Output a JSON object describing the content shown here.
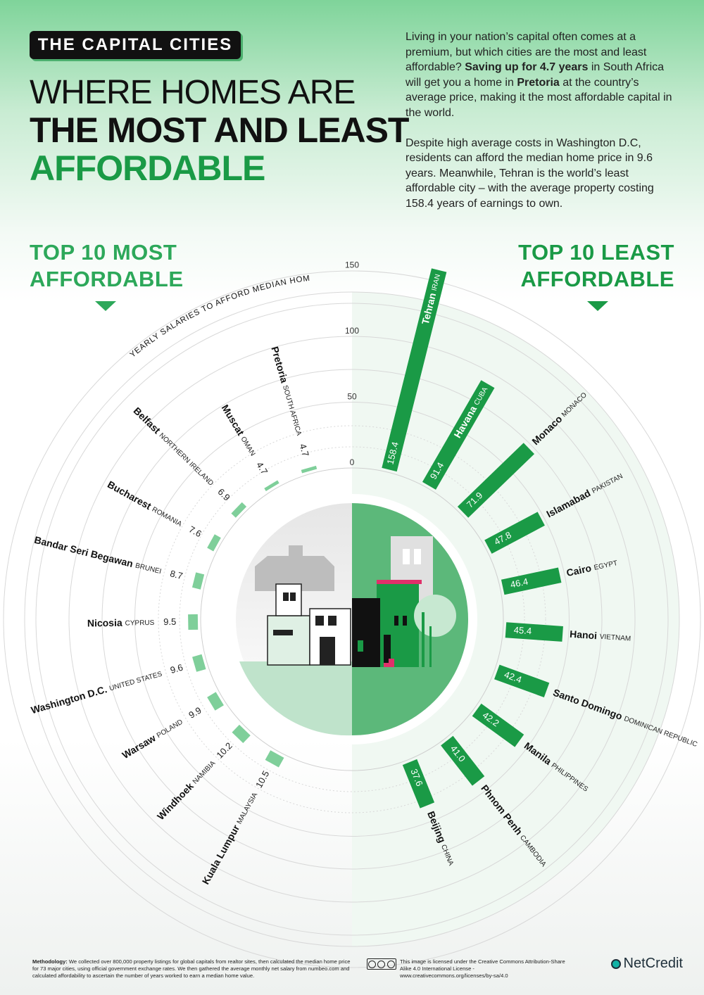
{
  "header": {
    "badge": "THE CAPITAL CITIES",
    "title_line1": "WHERE HOMES ARE",
    "title_line2": "THE MOST AND LEAST",
    "title_line3": "AFFORDABLE"
  },
  "intro": {
    "p1_a": "Living in your nation’s capital often comes at a premium, but which cities are the most and least affordable? ",
    "p1_b": "Saving up for 4.7 years",
    "p1_c": " in South Africa will get you a home in ",
    "p1_d": "Pretoria",
    "p1_e": " at the country’s average price, making it the most affordable capital in the world.",
    "p2": "Despite high average costs in Washington D.C, residents can afford the median home price in 9.6 years. Meanwhile, Tehran is the world’s least affordable city – with the average property costing 158.4 years of earnings to own."
  },
  "sections": {
    "left_line1": "TOP 10 MOST",
    "left_line2": "AFFORDABLE",
    "right_line1": "TOP 10 LEAST",
    "right_line2": "AFFORDABLE"
  },
  "colors": {
    "most_affordable": "#7fcf9a",
    "least_affordable": "#1a9a46",
    "ring": "#d8d8d8"
  },
  "chart_data": {
    "type": "bar",
    "layout": "radial",
    "axis_label": "YEARLY SALARIES TO AFFORD MEDIAN HOME PRICE",
    "ticks": [
      0,
      50,
      100,
      150
    ],
    "ylim": [
      0,
      160
    ],
    "series": [
      {
        "name": "TOP 10 MOST AFFORDABLE",
        "categories": [
          "Pretoria",
          "Muscat",
          "Belfast",
          "Bucharest",
          "Bandar Seri Begawan",
          "Nicosia",
          "Washington D.C.",
          "Warsaw",
          "Windhoek",
          "Kuala Lumpur"
        ],
        "countries": [
          "SOUTH AFRICA",
          "OMAN",
          "NORTHERN IRELAND",
          "ROMANIA",
          "BRUNEI",
          "CYPRUS",
          "UNITED STATES",
          "POLAND",
          "NAMIBIA",
          "MALAYSIA"
        ],
        "values": [
          4.7,
          4.7,
          6.9,
          7.6,
          8.7,
          9.5,
          9.6,
          9.9,
          10.2,
          10.5
        ],
        "labels": [
          "4.7",
          "4.7",
          "6.9",
          "7.6",
          "8.7",
          "9.5",
          "9.6",
          "9.9",
          "10.2",
          "10.5"
        ]
      },
      {
        "name": "TOP 10 LEAST AFFORDABLE",
        "categories": [
          "Tehran",
          "Havana",
          "Monaco",
          "Islamabad",
          "Cairo",
          "Hanoi",
          "Santo Domingo",
          "Manila",
          "Phnom Penh",
          "Beijing"
        ],
        "countries": [
          "IRAN",
          "CUBA",
          "MONACO",
          "PAKISTAN",
          "EGYPT",
          "VIETNAM",
          "DOMINICAN REPUBLIC",
          "PHILIPPINES",
          "CAMBODIA",
          "CHINA"
        ],
        "values": [
          158.4,
          91.4,
          71.9,
          47.8,
          46.4,
          45.4,
          42.4,
          42.2,
          41.0,
          37.6
        ],
        "labels": [
          "158.4",
          "91.4",
          "71.9",
          "47.8",
          "46.4",
          "45.4",
          "42.4",
          "42.2",
          "41.0",
          "37.6"
        ]
      }
    ]
  },
  "footer": {
    "methodology_label": "Methodology:",
    "methodology": " We collected over 800,000 property listings for global capitals from realtor sites, then calculated the median home price for 73 major cities, using official government exchange rates. We then gathered the average monthly net salary from numbeo.com and calculated affordability to ascertain the number of years worked to earn a median home value.",
    "license": "This image is licensed under the Creative Commons Attribution-Share Alike 4.0 International License - www.creativecommons.org/licenses/by-sa/4.0",
    "cc_badge": "cc",
    "brand": "NetCredit"
  }
}
